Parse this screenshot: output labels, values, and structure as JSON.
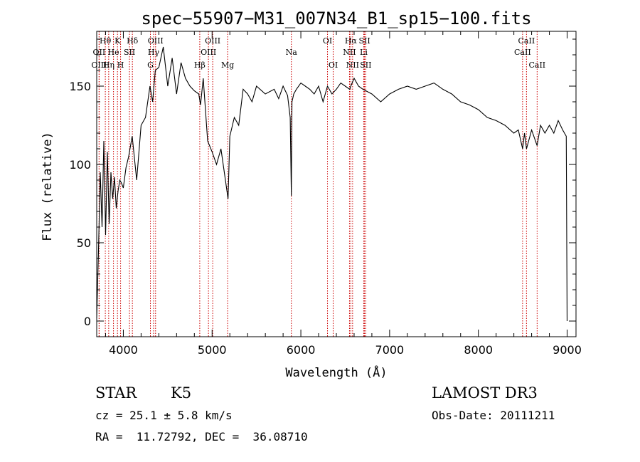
{
  "chart_data": {
    "type": "line",
    "title": "spec−55907−M31_007N34_B1_sp15−100.fits",
    "xlabel": "Wavelength (Å)",
    "ylabel": "Flux (relative)",
    "xlim": [
      3700,
      9100
    ],
    "ylim": [
      -10,
      185
    ],
    "x_ticks": [
      4000,
      5000,
      6000,
      7000,
      8000,
      9000
    ],
    "y_ticks": [
      0,
      50,
      100,
      150
    ],
    "grid": false,
    "series": [
      {
        "x": [
          3700,
          3720,
          3740,
          3760,
          3780,
          3800,
          3820,
          3840,
          3860,
          3880,
          3900,
          3920,
          3940,
          3960,
          3980,
          4000,
          4030,
          4060,
          4100,
          4150,
          4200,
          4250,
          4300,
          4330,
          4360,
          4400,
          4450,
          4500,
          4550,
          4600,
          4650,
          4700,
          4750,
          4800,
          4850,
          4870,
          4900,
          4950,
          5000,
          5050,
          5100,
          5150,
          5180,
          5200,
          5250,
          5300,
          5350,
          5400,
          5450,
          5500,
          5600,
          5700,
          5750,
          5800,
          5850,
          5880,
          5893,
          5900,
          5920,
          5950,
          6000,
          6050,
          6100,
          6150,
          6200,
          6250,
          6300,
          6350,
          6400,
          6450,
          6500,
          6550,
          6563,
          6600,
          6650,
          6700,
          6800,
          6900,
          7000,
          7100,
          7200,
          7300,
          7400,
          7500,
          7600,
          7700,
          7800,
          7900,
          8000,
          8100,
          8200,
          8300,
          8400,
          8450,
          8498,
          8520,
          8542,
          8600,
          8662,
          8700,
          8750,
          8800,
          8850,
          8900,
          8950,
          8990,
          9000
        ],
        "y": [
          2,
          45,
          95,
          60,
          115,
          55,
          108,
          62,
          95,
          78,
          92,
          72,
          83,
          90,
          88,
          85,
          98,
          105,
          118,
          90,
          125,
          130,
          150,
          140,
          160,
          162,
          175,
          150,
          168,
          145,
          165,
          155,
          150,
          147,
          145,
          138,
          155,
          115,
          108,
          100,
          110,
          90,
          78,
          118,
          130,
          125,
          148,
          145,
          140,
          150,
          145,
          148,
          142,
          150,
          144,
          130,
          80,
          140,
          145,
          148,
          152,
          150,
          148,
          145,
          150,
          140,
          150,
          145,
          148,
          152,
          150,
          148,
          150,
          155,
          150,
          148,
          145,
          140,
          145,
          148,
          150,
          148,
          150,
          152,
          148,
          145,
          140,
          138,
          135,
          130,
          128,
          125,
          120,
          122,
          110,
          120,
          110,
          122,
          112,
          125,
          120,
          125,
          120,
          128,
          122,
          118,
          0
        ]
      }
    ],
    "lines": [
      {
        "name": "Hθ",
        "wave": 3797,
        "row": 1
      },
      {
        "name": "OII",
        "wave": 3727,
        "row": 2
      },
      {
        "name": "OIII",
        "wave": 3727,
        "row": 3
      },
      {
        "name": "Hη",
        "wave": 3835,
        "row": 3
      },
      {
        "name": "K",
        "wave": 3934,
        "row": 1
      },
      {
        "name": "He",
        "wave": 3889,
        "row": 2
      },
      {
        "name": "H",
        "wave": 3969,
        "row": 3
      },
      {
        "name": "Hδ",
        "wave": 4102,
        "row": 1
      },
      {
        "name": "SII",
        "wave": 4069,
        "row": 2
      },
      {
        "name": "OIII",
        "wave": 4363,
        "row": 1
      },
      {
        "name": "Hγ",
        "wave": 4341,
        "row": 2
      },
      {
        "name": "G",
        "wave": 4305,
        "row": 3
      },
      {
        "name": "Hβ",
        "wave": 4861,
        "row": 3
      },
      {
        "name": "OIII",
        "wave": 5007,
        "row": 1
      },
      {
        "name": "OIII",
        "wave": 4959,
        "row": 2
      },
      {
        "name": "Mg",
        "wave": 5175,
        "row": 3
      },
      {
        "name": "Na",
        "wave": 5893,
        "row": 2
      },
      {
        "name": "OI",
        "wave": 6300,
        "row": 1
      },
      {
        "name": "OI",
        "wave": 6364,
        "row": 3
      },
      {
        "name": "Hα",
        "wave": 6563,
        "row": 1
      },
      {
        "name": "NII",
        "wave": 6548,
        "row": 2
      },
      {
        "name": "NII",
        "wave": 6583,
        "row": 3
      },
      {
        "name": "SII",
        "wave": 6717,
        "row": 1
      },
      {
        "name": "Li",
        "wave": 6708,
        "row": 2
      },
      {
        "name": "SII",
        "wave": 6731,
        "row": 3
      },
      {
        "name": "CaII",
        "wave": 8542,
        "row": 1
      },
      {
        "name": "CaII",
        "wave": 8498,
        "row": 2
      },
      {
        "name": "CaII",
        "wave": 8662,
        "row": 3
      }
    ]
  },
  "info": {
    "class_label": "STAR",
    "subclass_label": "K5",
    "survey_label": "LAMOST DR3",
    "cz_text": "cz = 25.1 ± 5.8 km/s",
    "obs_date_text": "Obs-Date: 20111211",
    "coords_text": "RA =  11.72792, DEC =  36.08710"
  },
  "colors": {
    "line_marker": "#cc0000",
    "spectrum": "#000000"
  }
}
